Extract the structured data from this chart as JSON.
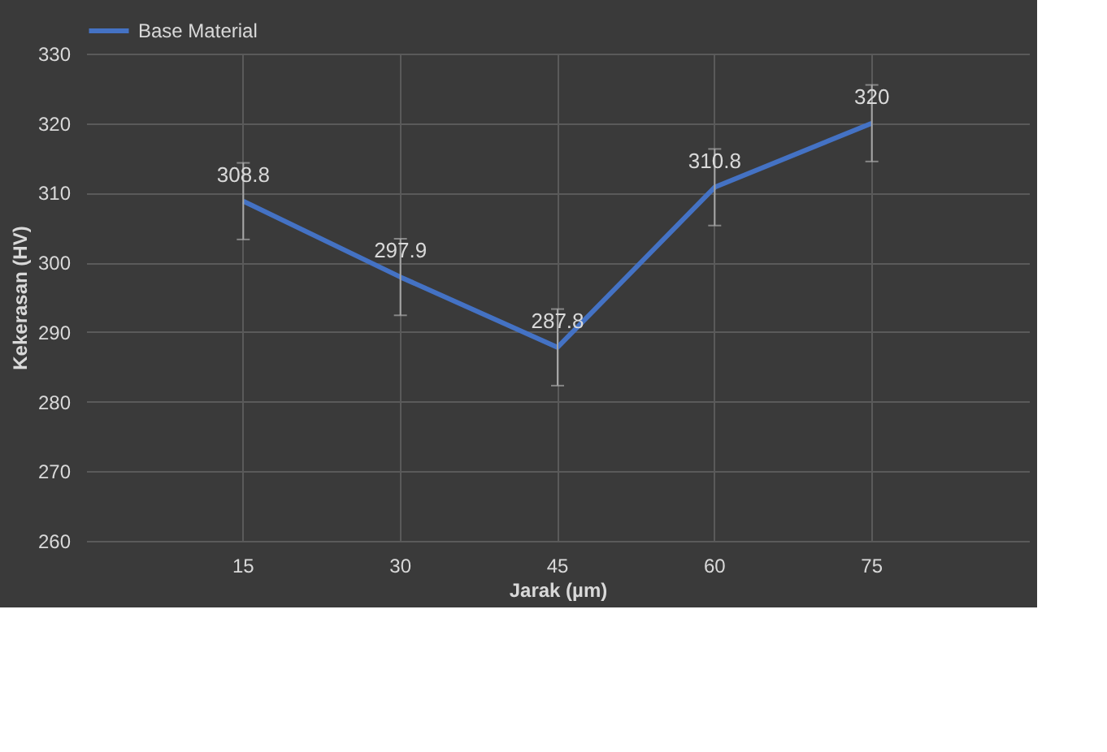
{
  "chart_data": {
    "type": "line",
    "xlabel": "Jarak (µm)",
    "ylabel": "Kekerasan (HV)",
    "categories": [
      "15",
      "30",
      "45",
      "60",
      "75"
    ],
    "series": [
      {
        "name": "Base Material",
        "color": "#4472c4",
        "values": [
          308.8,
          297.9,
          287.8,
          310.8,
          320
        ],
        "errors": [
          5.5,
          5.5,
          5.5,
          5.5,
          5.5
        ]
      }
    ],
    "ylim": [
      260,
      330
    ],
    "yticks": [
      260,
      270,
      280,
      290,
      300,
      310,
      320,
      330
    ],
    "grid": true,
    "legend": "top left",
    "data_labels": true,
    "marker": "none",
    "line_style": "solid"
  }
}
